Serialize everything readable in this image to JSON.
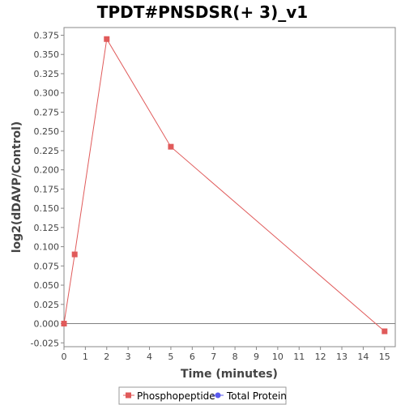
{
  "chart_data": {
    "type": "line",
    "title": "TPDT#PNSDSR(+ 3)_v1",
    "xlabel": "Time (minutes)",
    "ylabel": "log2(dDAVP/Control)",
    "xlim": [
      0,
      15.5
    ],
    "ylim": [
      -0.03,
      0.385
    ],
    "x_ticks": [
      0,
      1,
      2,
      3,
      4,
      5,
      6,
      7,
      8,
      9,
      10,
      11,
      12,
      13,
      14,
      15
    ],
    "y_ticks": [
      "-0.025",
      "0.000",
      "0.025",
      "0.050",
      "0.075",
      "0.100",
      "0.125",
      "0.150",
      "0.175",
      "0.200",
      "0.225",
      "0.250",
      "0.275",
      "0.300",
      "0.325",
      "0.350",
      "0.375"
    ],
    "grid": false,
    "zero_line": true,
    "legend_position": "bottom",
    "series": [
      {
        "name": "Phosphopeptide",
        "color": "#e05a5a",
        "marker": "square",
        "points": [
          {
            "x": 0,
            "y": 0.0
          },
          {
            "x": 0.5,
            "y": 0.09
          },
          {
            "x": 2,
            "y": 0.37
          },
          {
            "x": 5,
            "y": 0.23
          },
          {
            "x": 15,
            "y": -0.01
          }
        ]
      },
      {
        "name": "Total Protein",
        "color": "#5a5aee",
        "marker": "circle",
        "points": []
      }
    ]
  }
}
